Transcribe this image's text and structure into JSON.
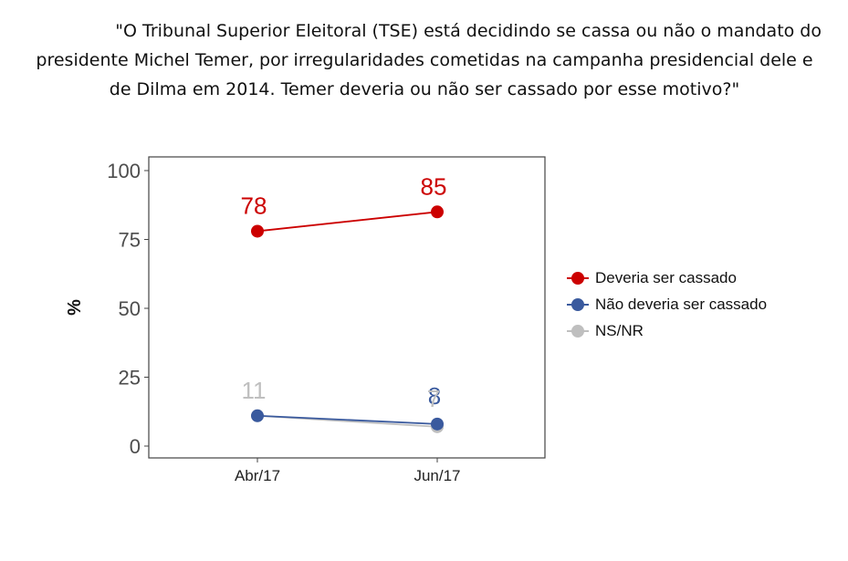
{
  "title_lines": [
    "\"O Tribunal Superior Eleitoral (TSE) está decidindo se cassa ou não o mandato do",
    "presidente Michel Temer, por irregularidades cometidas na campanha presidencial dele e",
    "de Dilma em 2014.  Temer deveria ou não ser cassado por esse motivo?\""
  ],
  "chart_data": {
    "type": "line",
    "title": "\"O Tribunal Superior Eleitoral (TSE) está decidindo se cassa ou não o mandato do presidente Michel Temer, por irregularidades cometidas na campanha presidencial dele e de Dilma em 2014.  Temer deveria ou não ser cassado por esse motivo?\"",
    "categories": [
      "Abr/17",
      "Jun/17"
    ],
    "xlabel": "",
    "ylabel": "%",
    "ylim": [
      0,
      100
    ],
    "yticks": [
      0,
      25,
      50,
      75,
      100
    ],
    "grid": false,
    "legend_position": "right",
    "series": [
      {
        "name": "Deveria ser cassado",
        "values": [
          78,
          85
        ],
        "labels": [
          "78",
          "85"
        ],
        "color": "#cc0000"
      },
      {
        "name": "Não deveria ser cassado",
        "values": [
          11,
          8
        ],
        "labels": [
          "11",
          "8"
        ],
        "color": "#3a5a9e"
      },
      {
        "name": "NS/NR",
        "values": [
          11,
          7
        ],
        "labels": [
          "11",
          "7"
        ],
        "color": "#bfbfbf"
      }
    ]
  }
}
